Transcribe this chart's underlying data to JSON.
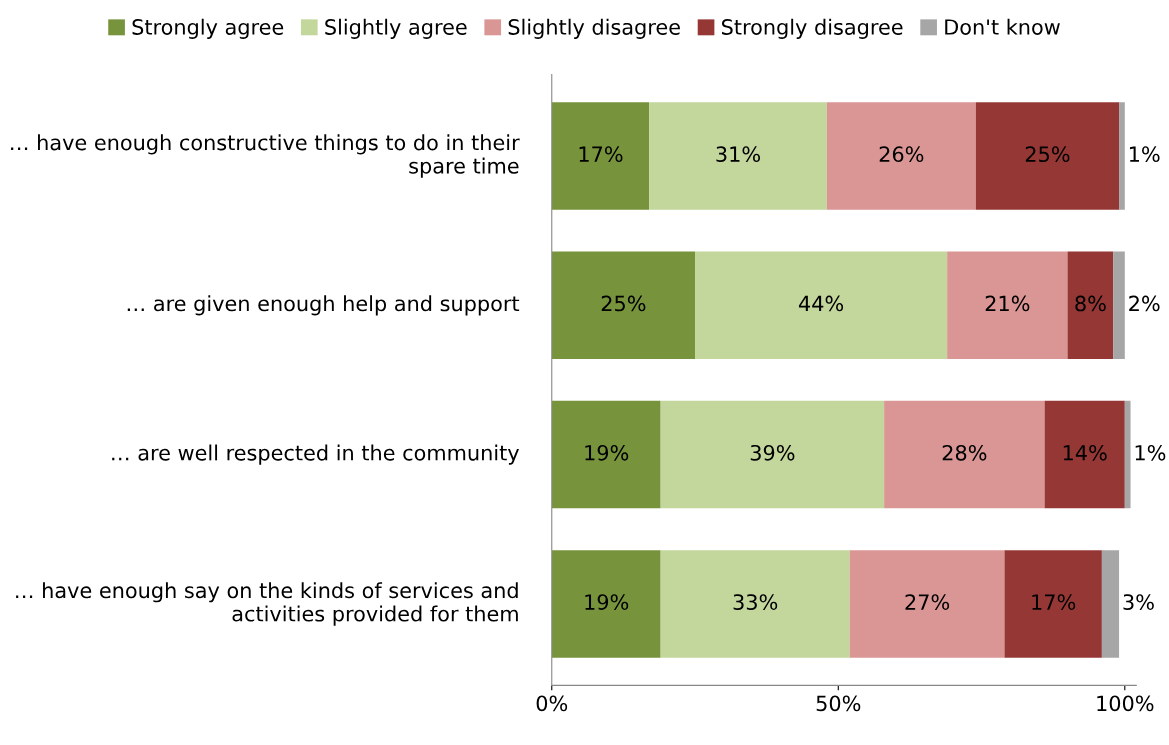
{
  "chart_data": {
    "type": "bar",
    "orientation": "horizontal",
    "stacked": true,
    "categories": [
      "… have enough constructive things to do in their spare time",
      "… are given enough help and support",
      "… are well respected in the community",
      "… have enough say on the kinds of services and activities provided for them"
    ],
    "series": [
      {
        "name": "Strongly agree",
        "color": "#77933c",
        "values": [
          17,
          25,
          19,
          19
        ],
        "value_labels": [
          "17%",
          "25%",
          "19%",
          "19%"
        ]
      },
      {
        "name": "Slightly agree",
        "color": "#c3d69b",
        "values": [
          31,
          44,
          39,
          33
        ],
        "value_labels": [
          "31%",
          "44%",
          "39%",
          "33%"
        ]
      },
      {
        "name": "Slightly disagree",
        "color": "#d99694",
        "values": [
          26,
          21,
          28,
          27
        ],
        "value_labels": [
          "26%",
          "21%",
          "28%",
          "27%"
        ]
      },
      {
        "name": "Strongly disagree",
        "color": "#953735",
        "values": [
          25,
          8,
          14,
          17
        ],
        "value_labels": [
          "25%",
          "8%",
          "14%",
          "17%"
        ]
      },
      {
        "name": "Don't know",
        "color": "#a6a6a6",
        "values": [
          1,
          2,
          1,
          3
        ],
        "value_labels": [
          "1%",
          "2%",
          "1%",
          "3%"
        ]
      }
    ],
    "xlim": [
      0,
      102
    ],
    "xticks": [
      {
        "value": 0,
        "label": "0%"
      },
      {
        "value": 50,
        "label": "50%"
      },
      {
        "value": 100,
        "label": "100%"
      }
    ],
    "legend": "top",
    "grid": false
  }
}
